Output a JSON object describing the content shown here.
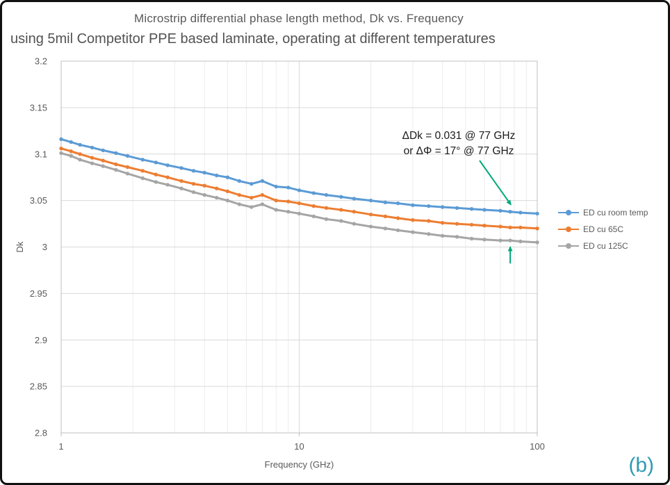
{
  "title": "Microstrip differential phase length method, Dk vs. Frequency",
  "subtitle": "using 5mil Competitor PPE based laminate, operating at different temperatures",
  "frame": {
    "corner_label": "(b)",
    "corner_color": "#2E9BB5"
  },
  "annotation": {
    "line1": "ΔDk = 0.031 @ 77 GHz",
    "line2": "or ΔΦ = 17° @ 77 GHz",
    "at_freq": 77,
    "arrow_color": "#00A878",
    "text_color": "#1a1a1a"
  },
  "chart_data": {
    "type": "line",
    "x_scale": "log",
    "xlabel": "Frequency (GHz)",
    "ylabel": "Dk",
    "xlim": [
      1,
      100
    ],
    "ylim": [
      2.8,
      3.2
    ],
    "x_ticks": [
      1,
      10,
      100
    ],
    "x_tick_labels": [
      "1",
      "10",
      "100"
    ],
    "y_ticks": [
      3.2,
      3.15,
      3.1,
      3.05,
      3,
      2.95,
      2.9,
      2.85,
      2.8
    ],
    "y_tick_labels": [
      "3.2",
      "3.15",
      "3.1",
      "3.05",
      "3",
      "2.95",
      "2.9",
      "2.85",
      "2.8"
    ],
    "grid": true,
    "legend_position": "right",
    "grid_color": "#d9d9d9",
    "minor_grid_color": "#ececec",
    "axis_text_color": "#595959",
    "x": [
      1,
      1.1,
      1.2,
      1.35,
      1.5,
      1.7,
      1.9,
      2.2,
      2.5,
      2.8,
      3.2,
      3.6,
      4,
      4.5,
      5,
      5.6,
      6.3,
      7,
      8,
      9,
      10,
      11.5,
      13,
      15,
      17,
      20,
      23,
      26,
      30,
      35,
      40,
      46,
      53,
      60,
      70,
      77,
      85,
      100
    ],
    "series": [
      {
        "name": "ED cu room temp",
        "color": "#5B9BD5",
        "values": [
          3.116,
          3.113,
          3.11,
          3.107,
          3.104,
          3.101,
          3.098,
          3.094,
          3.091,
          3.088,
          3.085,
          3.082,
          3.08,
          3.077,
          3.075,
          3.071,
          3.068,
          3.071,
          3.065,
          3.064,
          3.061,
          3.058,
          3.056,
          3.054,
          3.052,
          3.05,
          3.048,
          3.047,
          3.045,
          3.044,
          3.043,
          3.042,
          3.041,
          3.04,
          3.039,
          3.038,
          3.037,
          3.036
        ]
      },
      {
        "name": "ED cu 65C",
        "color": "#ED7D31",
        "values": [
          3.106,
          3.103,
          3.1,
          3.096,
          3.093,
          3.089,
          3.086,
          3.082,
          3.078,
          3.075,
          3.071,
          3.068,
          3.066,
          3.063,
          3.06,
          3.056,
          3.053,
          3.056,
          3.05,
          3.049,
          3.047,
          3.044,
          3.042,
          3.04,
          3.038,
          3.035,
          3.033,
          3.031,
          3.029,
          3.028,
          3.026,
          3.025,
          3.024,
          3.023,
          3.022,
          3.021,
          3.021,
          3.02
        ]
      },
      {
        "name": "ED cu 125C",
        "color": "#A5A5A5",
        "values": [
          3.101,
          3.098,
          3.094,
          3.09,
          3.087,
          3.083,
          3.079,
          3.074,
          3.07,
          3.067,
          3.063,
          3.059,
          3.056,
          3.053,
          3.05,
          3.046,
          3.043,
          3.046,
          3.04,
          3.038,
          3.036,
          3.033,
          3.03,
          3.028,
          3.025,
          3.022,
          3.02,
          3.018,
          3.016,
          3.014,
          3.012,
          3.011,
          3.009,
          3.008,
          3.007,
          3.007,
          3.006,
          3.005
        ]
      }
    ]
  }
}
